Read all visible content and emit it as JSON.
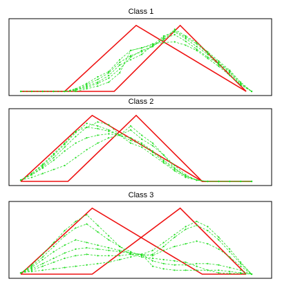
{
  "chart_data": [
    {
      "type": "line",
      "title": "Class 1",
      "xlim": [
        0,
        22
      ],
      "ylim": [
        0,
        1.06
      ],
      "grid": false,
      "templates": [
        {
          "x": [
            0,
            4,
            10.5,
            20.5
          ],
          "y": [
            0,
            0,
            1,
            0
          ]
        },
        {
          "x": [
            0,
            8.5,
            14.5,
            20.5
          ],
          "y": [
            0,
            0,
            1,
            0
          ]
        }
      ],
      "x": [
        0,
        1,
        2,
        3,
        4,
        5,
        6,
        7,
        8,
        9,
        10,
        11,
        12,
        13,
        14,
        15,
        16,
        17,
        18,
        19,
        20,
        21
      ],
      "series": [
        {
          "values": [
            0,
            0,
            0,
            0,
            0,
            0,
            0.04,
            0.08,
            0.14,
            0.28,
            0.62,
            0.66,
            0.72,
            0.74,
            0.75,
            0.7,
            0.62,
            0.5,
            0.38,
            0.24,
            0.1,
            0
          ]
        },
        {
          "values": [
            0,
            0,
            0,
            0,
            0,
            0.02,
            0.06,
            0.12,
            0.2,
            0.34,
            0.52,
            0.62,
            0.68,
            0.8,
            0.86,
            0.76,
            0.64,
            0.52,
            0.42,
            0.3,
            0.12,
            0
          ]
        },
        {
          "values": [
            0,
            0,
            0,
            0,
            0,
            0.02,
            0.08,
            0.14,
            0.24,
            0.4,
            0.48,
            0.56,
            0.7,
            0.84,
            0.9,
            0.8,
            0.68,
            0.56,
            0.4,
            0.28,
            0.1,
            0
          ]
        },
        {
          "values": [
            0,
            0,
            0,
            0,
            0,
            0.03,
            0.1,
            0.18,
            0.28,
            0.44,
            0.54,
            0.6,
            0.68,
            0.82,
            0.92,
            0.82,
            0.72,
            0.58,
            0.44,
            0.3,
            0.12,
            0
          ]
        },
        {
          "values": [
            0,
            0,
            0,
            0,
            0,
            0.04,
            0.12,
            0.22,
            0.3,
            0.48,
            0.62,
            0.66,
            0.7,
            0.78,
            0.94,
            0.84,
            0.74,
            0.6,
            0.46,
            0.32,
            0.14,
            0
          ]
        }
      ]
    },
    {
      "type": "line",
      "title": "Class 2",
      "xlim": [
        0,
        22
      ],
      "ylim": [
        0,
        1.06
      ],
      "grid": false,
      "templates": [
        {
          "x": [
            0,
            6.5,
            16.5,
            21
          ],
          "y": [
            0,
            1,
            0,
            0
          ]
        },
        {
          "x": [
            0,
            4.3,
            10.5,
            16.5,
            21
          ],
          "y": [
            0,
            0,
            1,
            0,
            0
          ]
        }
      ],
      "x": [
        0,
        1,
        2,
        3,
        4,
        5,
        6,
        7,
        8,
        9,
        10,
        11,
        12,
        13,
        14,
        15,
        16,
        17,
        18,
        19,
        20,
        21
      ],
      "series": [
        {
          "values": [
            0.02,
            0.1,
            0.22,
            0.36,
            0.52,
            0.68,
            0.82,
            0.9,
            0.86,
            0.7,
            0.58,
            0.52,
            0.4,
            0.28,
            0.16,
            0.06,
            0.02,
            0,
            0,
            0,
            0,
            0
          ]
        },
        {
          "values": [
            0.02,
            0.12,
            0.24,
            0.4,
            0.56,
            0.74,
            0.88,
            0.84,
            0.78,
            0.7,
            0.62,
            0.56,
            0.44,
            0.3,
            0.18,
            0.08,
            0.02,
            0,
            0,
            0,
            0,
            0
          ]
        },
        {
          "values": [
            0.02,
            0.12,
            0.26,
            0.42,
            0.58,
            0.76,
            0.82,
            0.8,
            0.76,
            0.7,
            0.66,
            0.58,
            0.46,
            0.32,
            0.2,
            0.08,
            0.02,
            0,
            0,
            0,
            0,
            0
          ]
        },
        {
          "values": [
            0.02,
            0.1,
            0.2,
            0.32,
            0.46,
            0.58,
            0.66,
            0.7,
            0.72,
            0.7,
            0.78,
            0.64,
            0.54,
            0.4,
            0.24,
            0.1,
            0.02,
            0,
            0,
            0,
            0,
            0
          ]
        },
        {
          "values": [
            0.02,
            0.06,
            0.12,
            0.18,
            0.24,
            0.36,
            0.48,
            0.58,
            0.66,
            0.7,
            0.84,
            0.7,
            0.58,
            0.4,
            0.2,
            0.08,
            0.02,
            0,
            0,
            0,
            0,
            0
          ]
        }
      ]
    },
    {
      "type": "line",
      "title": "Class 3",
      "xlim": [
        0,
        22
      ],
      "ylim": [
        0,
        1.06
      ],
      "grid": false,
      "templates": [
        {
          "x": [
            0,
            6.5,
            16.5,
            20.5
          ],
          "y": [
            0,
            1,
            0,
            0
          ]
        },
        {
          "x": [
            0,
            6.5,
            14.5,
            20.5
          ],
          "y": [
            0,
            0,
            1,
            0
          ]
        }
      ],
      "x": [
        0,
        1,
        2,
        3,
        4,
        5,
        6,
        7,
        8,
        9,
        10,
        11,
        12,
        13,
        14,
        15,
        16,
        17,
        18,
        19,
        20,
        21
      ],
      "series": [
        {
          "values": [
            0.02,
            0.14,
            0.3,
            0.48,
            0.66,
            0.8,
            0.9,
            0.74,
            0.58,
            0.42,
            0.3,
            0.26,
            0.24,
            0.22,
            0.2,
            0.18,
            0.12,
            0.06,
            0.02,
            0.01,
            0.01,
            0
          ]
        },
        {
          "values": [
            0.02,
            0.12,
            0.26,
            0.42,
            0.58,
            0.7,
            0.76,
            0.64,
            0.52,
            0.42,
            0.34,
            0.28,
            0.3,
            0.42,
            0.56,
            0.68,
            0.74,
            0.66,
            0.52,
            0.34,
            0.16,
            0
          ]
        },
        {
          "values": [
            0.02,
            0.1,
            0.22,
            0.34,
            0.44,
            0.52,
            0.48,
            0.44,
            0.4,
            0.36,
            0.32,
            0.3,
            0.36,
            0.48,
            0.6,
            0.72,
            0.8,
            0.72,
            0.56,
            0.38,
            0.18,
            0
          ]
        },
        {
          "values": [
            0.02,
            0.08,
            0.16,
            0.24,
            0.32,
            0.38,
            0.4,
            0.38,
            0.36,
            0.34,
            0.32,
            0.3,
            0.28,
            0.36,
            0.42,
            0.46,
            0.5,
            0.46,
            0.38,
            0.26,
            0.12,
            0
          ]
        },
        {
          "values": [
            0.02,
            0.06,
            0.12,
            0.18,
            0.24,
            0.28,
            0.3,
            0.28,
            0.28,
            0.28,
            0.3,
            0.3,
            0.2,
            0.16,
            0.14,
            0.14,
            0.16,
            0.16,
            0.14,
            0.1,
            0.06,
            0
          ]
        },
        {
          "values": [
            0.02,
            0.04,
            0.06,
            0.08,
            0.1,
            0.12,
            0.14,
            0.16,
            0.18,
            0.22,
            0.26,
            0.3,
            0.12,
            0.08,
            0.06,
            0.06,
            0.06,
            0.06,
            0.06,
            0.04,
            0.02,
            0
          ]
        }
      ]
    }
  ],
  "colors": {
    "template": "#ee1111",
    "series": "#22dd22",
    "frame": "#000000"
  }
}
